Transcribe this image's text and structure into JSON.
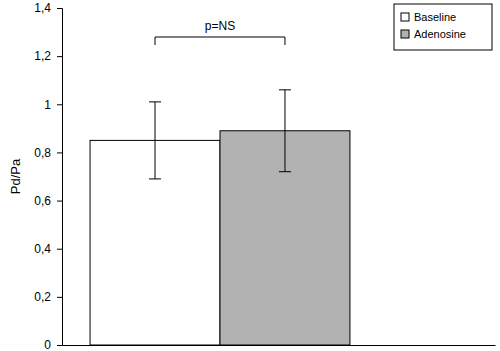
{
  "chart_data": {
    "type": "bar",
    "y_label": "Pd/Pa",
    "annotation": "p=NS",
    "categories": [
      null
    ],
    "series": [
      {
        "name": "Baseline",
        "color": "#ffffff",
        "values": [
          0.85
        ],
        "errors": [
          0.16
        ]
      },
      {
        "name": "Adenosine",
        "color": "#b2b2b2",
        "values": [
          0.89
        ],
        "errors": [
          0.17
        ]
      }
    ],
    "ylim": [
      0,
      1.4
    ],
    "yticks": [
      0,
      {
        "value": 0.2,
        "label": "0,2"
      },
      {
        "value": 0.4,
        "label": "0,4"
      },
      {
        "value": 0.6,
        "label": "0,6"
      },
      {
        "value": 0.8,
        "label": "0,8"
      },
      1,
      {
        "value": 1.2,
        "label": "1,2"
      },
      {
        "value": 1.4,
        "label": "1,4"
      }
    ],
    "grid": false,
    "legend": "top-right"
  }
}
